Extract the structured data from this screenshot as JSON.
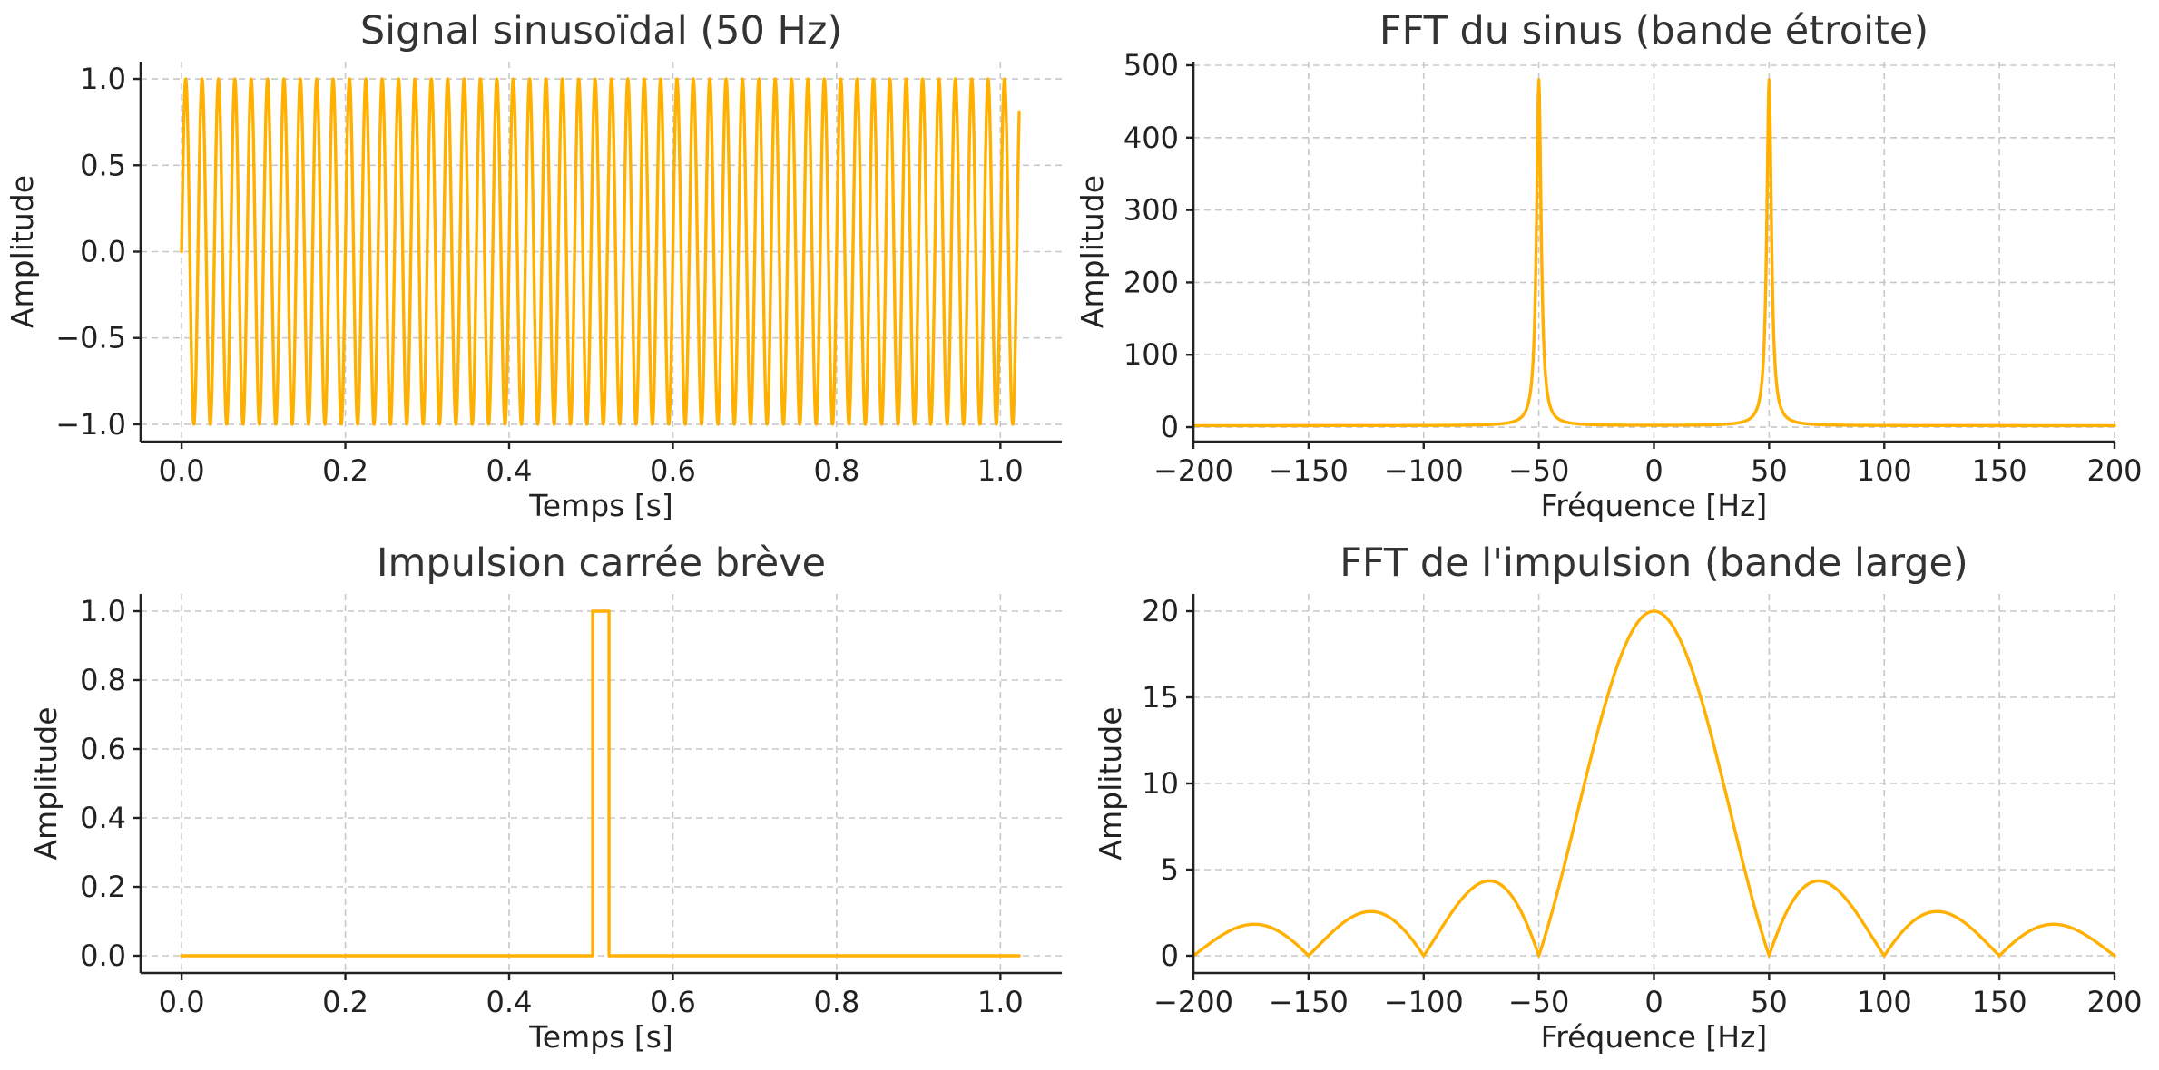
{
  "colors": {
    "series": "#FFB000",
    "grid": "#c8c8c8",
    "text": "#333333",
    "axis": "#222222"
  },
  "chart_data": [
    {
      "id": "sine",
      "type": "line",
      "title": "Signal sinusoïdal (50 Hz)",
      "xlabel": "Temps [s]",
      "ylabel": "Amplitude",
      "xlim": [
        -0.05,
        1.075
      ],
      "ylim": [
        -1.1,
        1.1
      ],
      "xticks": [
        0.0,
        0.2,
        0.4,
        0.6,
        0.8,
        1.0
      ],
      "xtick_labels": [
        "0.0",
        "0.2",
        "0.4",
        "0.6",
        "0.8",
        "1.0"
      ],
      "yticks": [
        -1.0,
        -0.5,
        0.0,
        0.5,
        1.0
      ],
      "ytick_labels": [
        "−1.0",
        "−0.5",
        "0.0",
        "0.5",
        "1.0"
      ],
      "grid": true,
      "series": [
        {
          "function": "sin(2*pi*f*t)",
          "frequency_hz": 50,
          "t_start": 0,
          "t_end": 1.023,
          "amplitude": 1.0
        }
      ]
    },
    {
      "id": "sine-fft",
      "type": "line",
      "title": "FFT du sinus (bande étroite)",
      "xlabel": "Fréquence [Hz]",
      "ylabel": "Amplitude",
      "xlim": [
        -200,
        200
      ],
      "ylim": [
        -20,
        505
      ],
      "xticks": [
        -200,
        -150,
        -100,
        -50,
        0,
        50,
        100,
        150,
        200
      ],
      "xtick_labels": [
        "−200",
        "−150",
        "−100",
        "−50",
        "0",
        "50",
        "100",
        "150",
        "200"
      ],
      "yticks": [
        0,
        100,
        200,
        300,
        400,
        500
      ],
      "ytick_labels": [
        "0",
        "100",
        "200",
        "300",
        "400",
        "500"
      ],
      "grid": true,
      "series": [
        {
          "peaks_hz": [
            -50,
            50
          ],
          "peak_amplitude": 480,
          "baseline": 2
        }
      ]
    },
    {
      "id": "pulse",
      "type": "line",
      "title": "Impulsion carrée brève",
      "xlabel": "Temps [s]",
      "ylabel": "Amplitude",
      "xlim": [
        -0.05,
        1.075
      ],
      "ylim": [
        -0.05,
        1.05
      ],
      "xticks": [
        0.0,
        0.2,
        0.4,
        0.6,
        0.8,
        1.0
      ],
      "xtick_labels": [
        "0.0",
        "0.2",
        "0.4",
        "0.6",
        "0.8",
        "1.0"
      ],
      "yticks": [
        0.0,
        0.2,
        0.4,
        0.6,
        0.8,
        1.0
      ],
      "ytick_labels": [
        "0.0",
        "0.2",
        "0.4",
        "0.6",
        "0.8",
        "1.0"
      ],
      "grid": true,
      "series": [
        {
          "x": [
            0.0,
            0.502,
            0.502,
            0.522,
            0.522,
            1.023
          ],
          "y": [
            0,
            0,
            1,
            1,
            0,
            0
          ]
        }
      ]
    },
    {
      "id": "pulse-fft",
      "type": "line",
      "title": "FFT de l'impulsion (bande large)",
      "xlabel": "Fréquence [Hz]",
      "ylabel": "Amplitude",
      "xlim": [
        -200,
        200
      ],
      "ylim": [
        -1,
        21
      ],
      "xticks": [
        -200,
        -150,
        -100,
        -50,
        0,
        50,
        100,
        150,
        200
      ],
      "xtick_labels": [
        "−200",
        "−150",
        "−100",
        "−50",
        "0",
        "50",
        "100",
        "150",
        "200"
      ],
      "yticks": [
        0,
        5,
        10,
        15,
        20
      ],
      "ytick_labels": [
        "0",
        "5",
        "10",
        "15",
        "20"
      ],
      "grid": true,
      "series": [
        {
          "function": "|A*sinc(f*T)|",
          "A": 20,
          "zero_spacing_hz": 50
        }
      ]
    }
  ]
}
